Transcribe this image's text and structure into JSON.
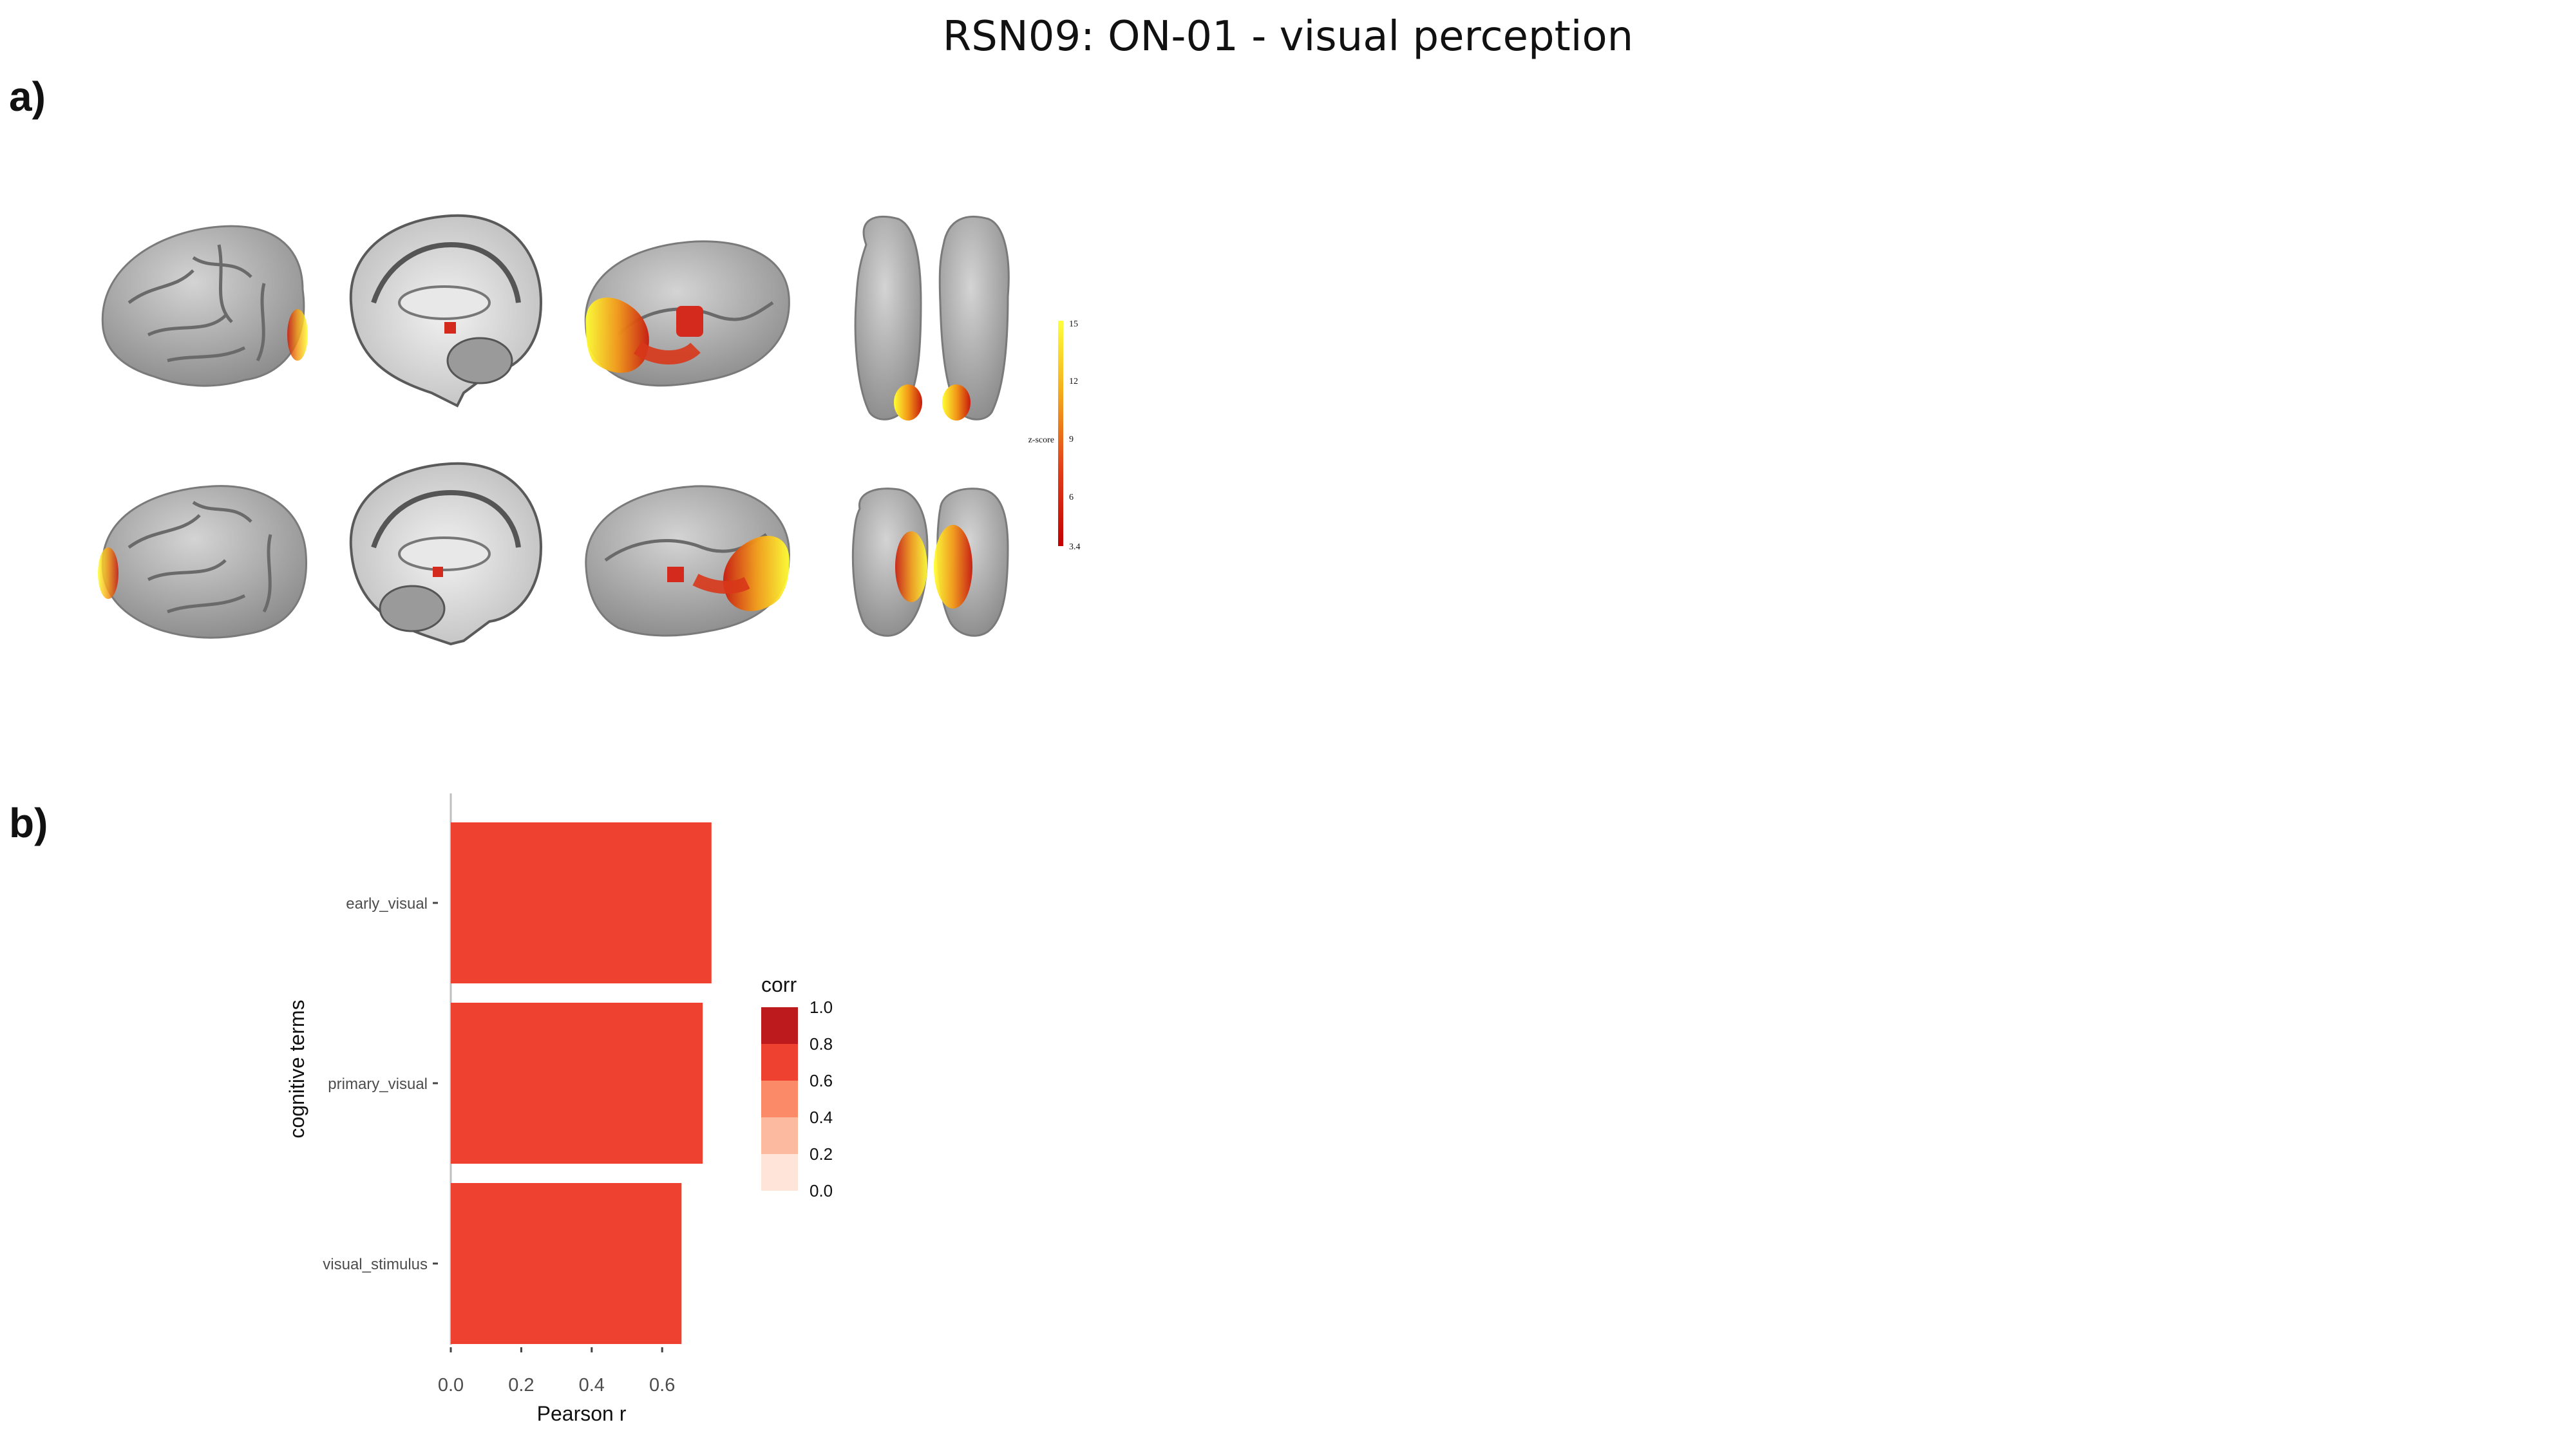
{
  "figure": {
    "title": "RSN09: ON-01 - visual perception",
    "panel_a_label": "a)",
    "panel_b_label": "b)"
  },
  "brain_colorbar": {
    "label": "z-score",
    "ticks": [
      "15",
      "12",
      "9",
      "6",
      "3.4"
    ],
    "colors": [
      "#ffff33",
      "#f7b21a",
      "#ee6a14",
      "#d52010",
      "#c40000"
    ]
  },
  "chart_data": {
    "type": "bar",
    "orientation": "horizontal",
    "categories": [
      "early_visual",
      "primary_visual",
      "visual_stimulus"
    ],
    "values": [
      0.74,
      0.715,
      0.655
    ],
    "xlabel": "Pearson r",
    "ylabel": "cognitive terms",
    "xlim": [
      0,
      0.74
    ],
    "xticks": [
      "0.0",
      "0.2",
      "0.4",
      "0.6"
    ],
    "xtick_values": [
      0,
      0.2,
      0.4,
      0.6
    ],
    "bar_color": "#ef4130",
    "legend": {
      "title": "corr",
      "position": "right",
      "labels": [
        "1.0",
        "0.8",
        "0.6",
        "0.4",
        "0.2",
        "0.0"
      ],
      "colors": [
        "#bd1a1e",
        "#ef4130",
        "#fb8a68",
        "#fcbba1",
        "#fee4d9"
      ]
    }
  }
}
